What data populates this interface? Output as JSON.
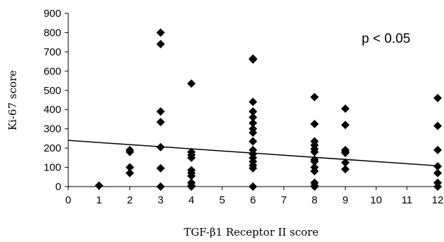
{
  "chart_data": {
    "type": "scatter",
    "title": "",
    "xlabel": "TGF-β1 Receptor II score",
    "ylabel": "Ki-67 score",
    "annotation": "p < 0.05",
    "xlim": [
      0,
      12
    ],
    "ylim": [
      0,
      900
    ],
    "x_ticks": [
      0,
      1,
      2,
      3,
      4,
      5,
      6,
      7,
      8,
      9,
      10,
      11,
      12
    ],
    "y_ticks": [
      0,
      100,
      200,
      300,
      400,
      500,
      600,
      700,
      800,
      900
    ],
    "grid": false,
    "marker_color": "#000000",
    "points": [
      {
        "x": 1,
        "y": 5
      },
      {
        "x": 2,
        "y": 190
      },
      {
        "x": 2,
        "y": 180
      },
      {
        "x": 2,
        "y": 100
      },
      {
        "x": 2,
        "y": 70
      },
      {
        "x": 3,
        "y": 800
      },
      {
        "x": 3,
        "y": 740
      },
      {
        "x": 3,
        "y": 390
      },
      {
        "x": 3,
        "y": 335
      },
      {
        "x": 3,
        "y": 205
      },
      {
        "x": 3,
        "y": 95
      },
      {
        "x": 3,
        "y": 0
      },
      {
        "x": 4,
        "y": 535
      },
      {
        "x": 4,
        "y": 180
      },
      {
        "x": 4,
        "y": 165
      },
      {
        "x": 4,
        "y": 150
      },
      {
        "x": 4,
        "y": 85
      },
      {
        "x": 4,
        "y": 70
      },
      {
        "x": 4,
        "y": 55
      },
      {
        "x": 4,
        "y": 20
      },
      {
        "x": 4,
        "y": 5
      },
      {
        "x": 4,
        "y": 0
      },
      {
        "x": 6,
        "y": 665
      },
      {
        "x": 6,
        "y": 660
      },
      {
        "x": 6,
        "y": 440
      },
      {
        "x": 6,
        "y": 390
      },
      {
        "x": 6,
        "y": 360
      },
      {
        "x": 6,
        "y": 330
      },
      {
        "x": 6,
        "y": 300
      },
      {
        "x": 6,
        "y": 280
      },
      {
        "x": 6,
        "y": 235
      },
      {
        "x": 6,
        "y": 190
      },
      {
        "x": 6,
        "y": 170
      },
      {
        "x": 6,
        "y": 150
      },
      {
        "x": 6,
        "y": 130
      },
      {
        "x": 6,
        "y": 110
      },
      {
        "x": 6,
        "y": 95
      },
      {
        "x": 6,
        "y": 0
      },
      {
        "x": 8,
        "y": 465
      },
      {
        "x": 8,
        "y": 325
      },
      {
        "x": 8,
        "y": 235
      },
      {
        "x": 8,
        "y": 215
      },
      {
        "x": 8,
        "y": 195
      },
      {
        "x": 8,
        "y": 180
      },
      {
        "x": 8,
        "y": 140
      },
      {
        "x": 8,
        "y": 130
      },
      {
        "x": 8,
        "y": 100
      },
      {
        "x": 8,
        "y": 80
      },
      {
        "x": 8,
        "y": 20
      },
      {
        "x": 8,
        "y": 5
      },
      {
        "x": 8,
        "y": 0
      },
      {
        "x": 9,
        "y": 405
      },
      {
        "x": 9,
        "y": 320
      },
      {
        "x": 9,
        "y": 190
      },
      {
        "x": 9,
        "y": 180
      },
      {
        "x": 9,
        "y": 175
      },
      {
        "x": 9,
        "y": 125
      },
      {
        "x": 9,
        "y": 90
      },
      {
        "x": 12,
        "y": 460
      },
      {
        "x": 12,
        "y": 315
      },
      {
        "x": 12,
        "y": 190
      },
      {
        "x": 12,
        "y": 105
      },
      {
        "x": 12,
        "y": 70
      },
      {
        "x": 12,
        "y": 20
      },
      {
        "x": 12,
        "y": 0
      }
    ],
    "trendline": {
      "x": [
        0,
        12
      ],
      "y": [
        240,
        108
      ]
    }
  }
}
